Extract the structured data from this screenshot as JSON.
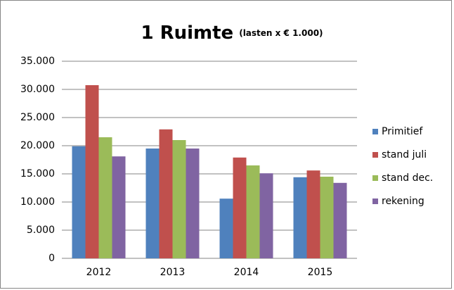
{
  "chart_data": {
    "type": "bar",
    "title": "1 Ruimte",
    "subtitle": "(lasten x € 1.000)",
    "categories": [
      "2012",
      "2013",
      "2014",
      "2015"
    ],
    "series": [
      {
        "name": "Primitief",
        "color": "#4f81bd",
        "values": [
          19900,
          19500,
          10600,
          14400
        ]
      },
      {
        "name": "stand juli",
        "color": "#c0504d",
        "values": [
          30750,
          22900,
          17900,
          15600
        ]
      },
      {
        "name": "stand dec.",
        "color": "#9bbb59",
        "values": [
          21500,
          21000,
          16500,
          14500
        ]
      },
      {
        "name": "rekening",
        "color": "#8064a2",
        "values": [
          18100,
          19500,
          15100,
          13400
        ]
      }
    ],
    "ylim": [
      0,
      35000
    ],
    "yticks": [
      0,
      {
        "value": 5000,
        "label": "5.000"
      },
      {
        "value": 10000,
        "label": "10.000"
      },
      {
        "value": 15000,
        "label": "15.000"
      },
      {
        "value": 20000,
        "label": "20.000"
      },
      {
        "value": 25000,
        "label": "25.000"
      },
      {
        "value": 30000,
        "label": "30.000"
      },
      {
        "value": 35000,
        "label": "35.000"
      }
    ],
    "grid": true,
    "legend": "right"
  }
}
